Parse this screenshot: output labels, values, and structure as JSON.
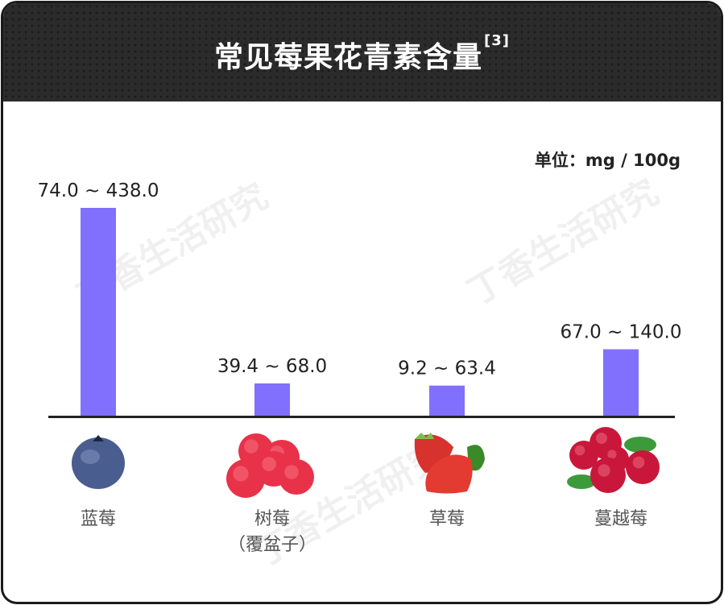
{
  "title": "常见莓果花青素含量",
  "title_ref": "[3]",
  "unit": "单位：mg / 100g",
  "watermark": "丁香生活研究",
  "colors": {
    "bar": "#8170fd",
    "axis": "#222222",
    "header": "#2b2b2b"
  },
  "chart_data": {
    "type": "bar",
    "title": "常见莓果花青素含量",
    "ylabel": "单位：mg / 100g",
    "categories": [
      "蓝莓",
      "树莓",
      "草莓",
      "蔓越莓"
    ],
    "category_sublabels": [
      "",
      "（覆盆子）",
      "",
      ""
    ],
    "ranges": [
      [
        74.0,
        438.0
      ],
      [
        39.4,
        68.0
      ],
      [
        9.2,
        63.4
      ],
      [
        67.0,
        140.0
      ]
    ],
    "data_labels": [
      "74.0 ~ 438.0",
      "39.4 ~ 68.0",
      "9.2 ~ 63.4",
      "67.0 ~ 140.0"
    ],
    "ylim": [
      0,
      438
    ],
    "grid": false,
    "icons": [
      "blueberry-icon",
      "raspberry-icon",
      "strawberry-icon",
      "cranberry-icon"
    ]
  }
}
